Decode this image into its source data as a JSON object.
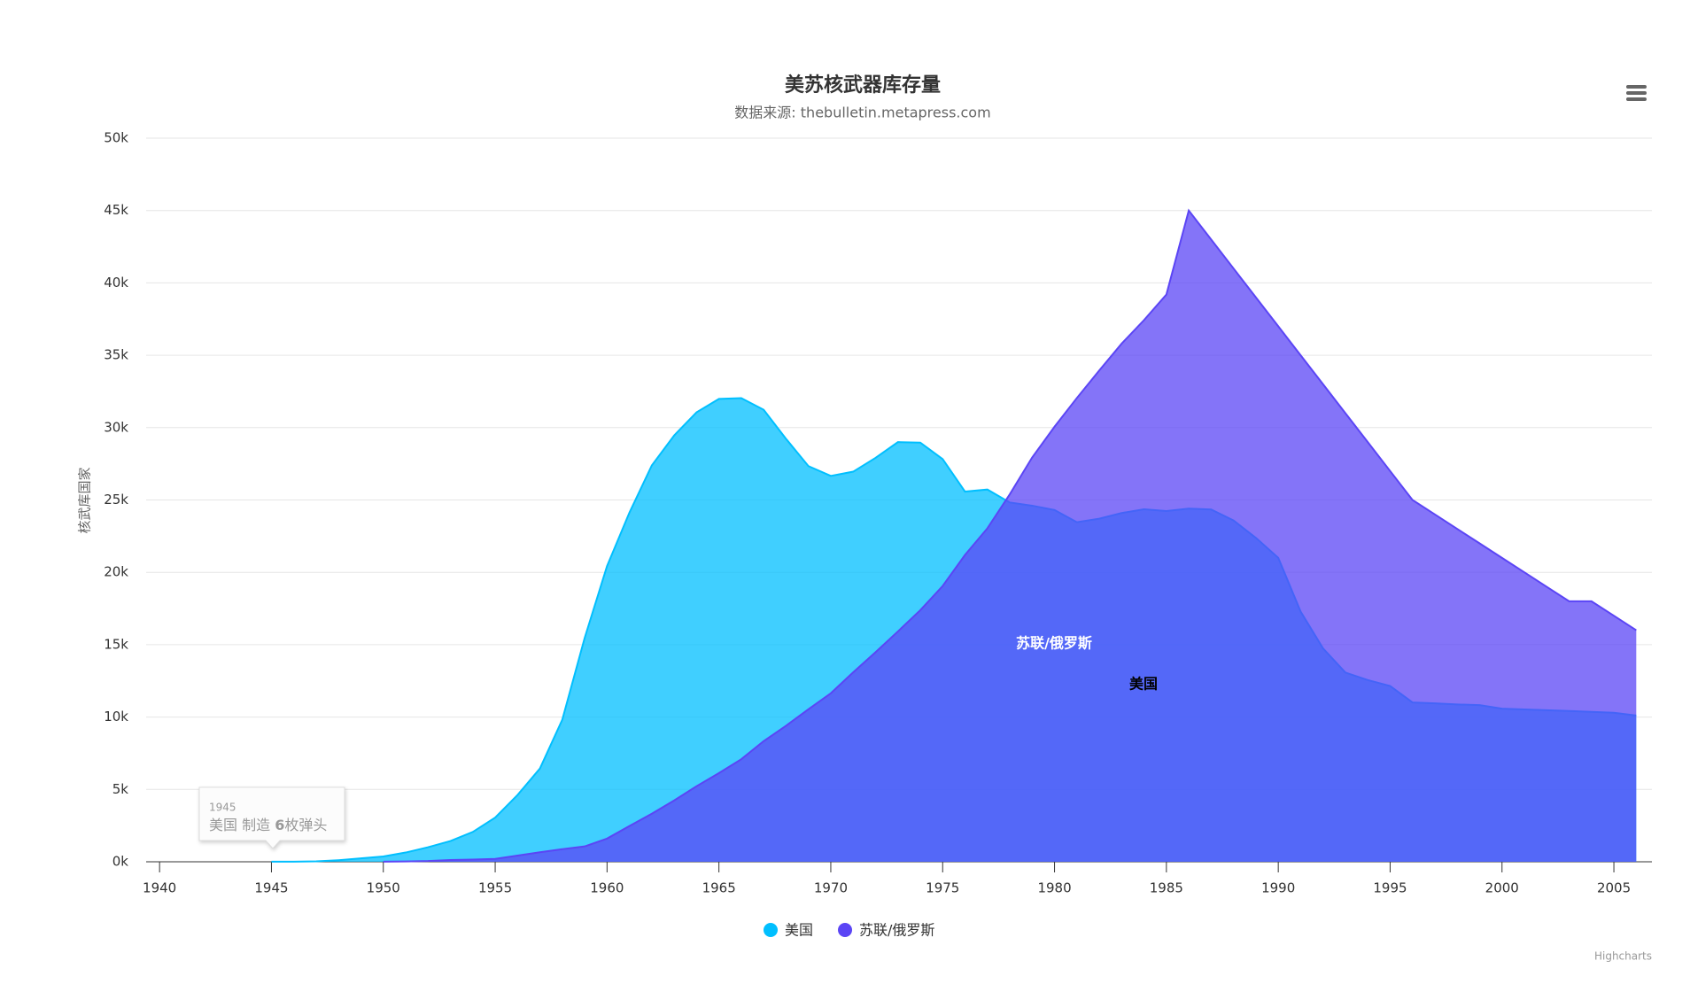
{
  "chart_data": {
    "type": "area",
    "title": "美苏核武器库存量",
    "subtitle": "数据来源: thebulletin.metapress.com",
    "y_axis_label": "核武库国家",
    "credits": "Highcharts",
    "x": [
      1940,
      1941,
      1942,
      1943,
      1944,
      1945,
      1946,
      1947,
      1948,
      1949,
      1950,
      1951,
      1952,
      1953,
      1954,
      1955,
      1956,
      1957,
      1958,
      1959,
      1960,
      1961,
      1962,
      1963,
      1964,
      1965,
      1966,
      1967,
      1968,
      1969,
      1970,
      1971,
      1972,
      1973,
      1974,
      1975,
      1976,
      1977,
      1978,
      1979,
      1980,
      1981,
      1982,
      1983,
      1984,
      1985,
      1986,
      1987,
      1988,
      1989,
      1990,
      1991,
      1992,
      1993,
      1994,
      1995,
      1996,
      1997,
      1998,
      1999,
      2000,
      2001,
      2002,
      2003,
      2004,
      2005,
      2006
    ],
    "series": [
      {
        "name": "美国",
        "color": "#00bfff",
        "values": [
          null,
          null,
          null,
          null,
          null,
          6,
          11,
          32,
          110,
          235,
          369,
          640,
          1005,
          1436,
          2063,
          3057,
          4618,
          6444,
          9822,
          15468,
          20434,
          24126,
          27387,
          29459,
          31056,
          31982,
          32040,
          31233,
          29224,
          27342,
          26662,
          26956,
          27912,
          28999,
          28965,
          27826,
          25579,
          25722,
          24826,
          24605,
          24304,
          23464,
          23708,
          24099,
          24357,
          24237,
          24401,
          24344,
          23586,
          22380,
          21004,
          17287,
          14747,
          13076,
          12555,
          12144,
          11009,
          10950,
          10871,
          10824,
          10577,
          10527,
          10475,
          10421,
          10358,
          10295,
          10104
        ]
      },
      {
        "name": "苏联/俄罗斯",
        "color": "#5b45f5",
        "values": [
          null,
          null,
          null,
          null,
          null,
          null,
          null,
          null,
          null,
          null,
          5,
          25,
          50,
          120,
          150,
          200,
          426,
          660,
          869,
          1060,
          1605,
          2471,
          3322,
          4238,
          5221,
          6129,
          7089,
          8339,
          9399,
          10538,
          11643,
          13092,
          14478,
          15915,
          17385,
          19055,
          21205,
          23044,
          25393,
          27935,
          30062,
          32049,
          33952,
          35804,
          37431,
          39197,
          45000,
          43000,
          41000,
          39000,
          37000,
          35000,
          33000,
          31000,
          29000,
          27000,
          25000,
          24000,
          23000,
          22000,
          21000,
          20000,
          19000,
          18000,
          18000,
          17000,
          16000
        ]
      }
    ],
    "xlim": [
      1939.4,
      2006.7
    ],
    "xticks": [
      1940,
      1945,
      1950,
      1955,
      1960,
      1965,
      1970,
      1975,
      1980,
      1985,
      1990,
      1995,
      2000,
      2005
    ],
    "ylim": [
      0,
      50000
    ],
    "yticks": [
      {
        "value": 0,
        "label": "0k"
      },
      {
        "value": 5000,
        "label": "5k"
      },
      {
        "value": 10000,
        "label": "10k"
      },
      {
        "value": 15000,
        "label": "15k"
      },
      {
        "value": 20000,
        "label": "20k"
      },
      {
        "value": 25000,
        "label": "25k"
      },
      {
        "value": 30000,
        "label": "30k"
      },
      {
        "value": 35000,
        "label": "35k"
      },
      {
        "value": 40000,
        "label": "40k"
      },
      {
        "value": 45000,
        "label": "45k"
      },
      {
        "value": 50000,
        "label": "50k"
      }
    ],
    "grid": true,
    "annotations": [
      {
        "text": "苏联/俄罗斯",
        "series": 1
      },
      {
        "text": "美国",
        "series": 0
      }
    ],
    "tooltip": {
      "index": 5,
      "series": 0,
      "verb": "制造",
      "suffix": "枚弹头"
    }
  }
}
